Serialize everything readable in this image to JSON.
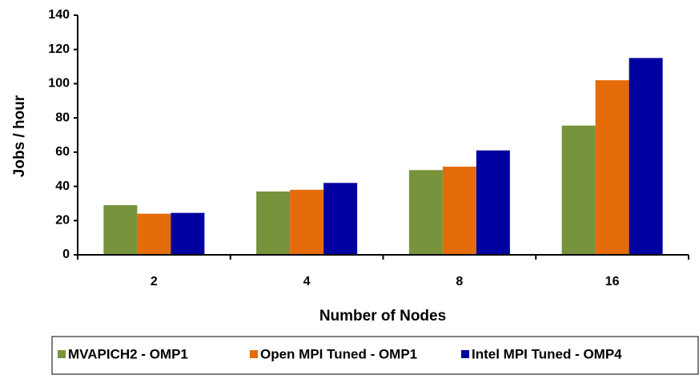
{
  "chart_data": {
    "type": "bar",
    "categories": [
      "2",
      "4",
      "8",
      "16"
    ],
    "series": [
      {
        "name": "MVAPICH2 - OMP1",
        "color": "#77933c",
        "values": [
          29,
          37,
          49.5,
          75.5
        ]
      },
      {
        "name": "Open MPI Tuned - OMP1",
        "color": "#e46c0a",
        "values": [
          24,
          38,
          51.5,
          102
        ]
      },
      {
        "name": "Intel MPI Tuned - OMP4",
        "color": "#0000a0",
        "values": [
          24.5,
          42,
          61,
          115
        ]
      }
    ],
    "x_label": "Number of Nodes",
    "y_label": "Jobs / hour",
    "ylim": [
      0,
      140
    ],
    "yticks": [
      0,
      20,
      40,
      60,
      80,
      100,
      120,
      140
    ],
    "grid": false,
    "legend": "bottom"
  }
}
